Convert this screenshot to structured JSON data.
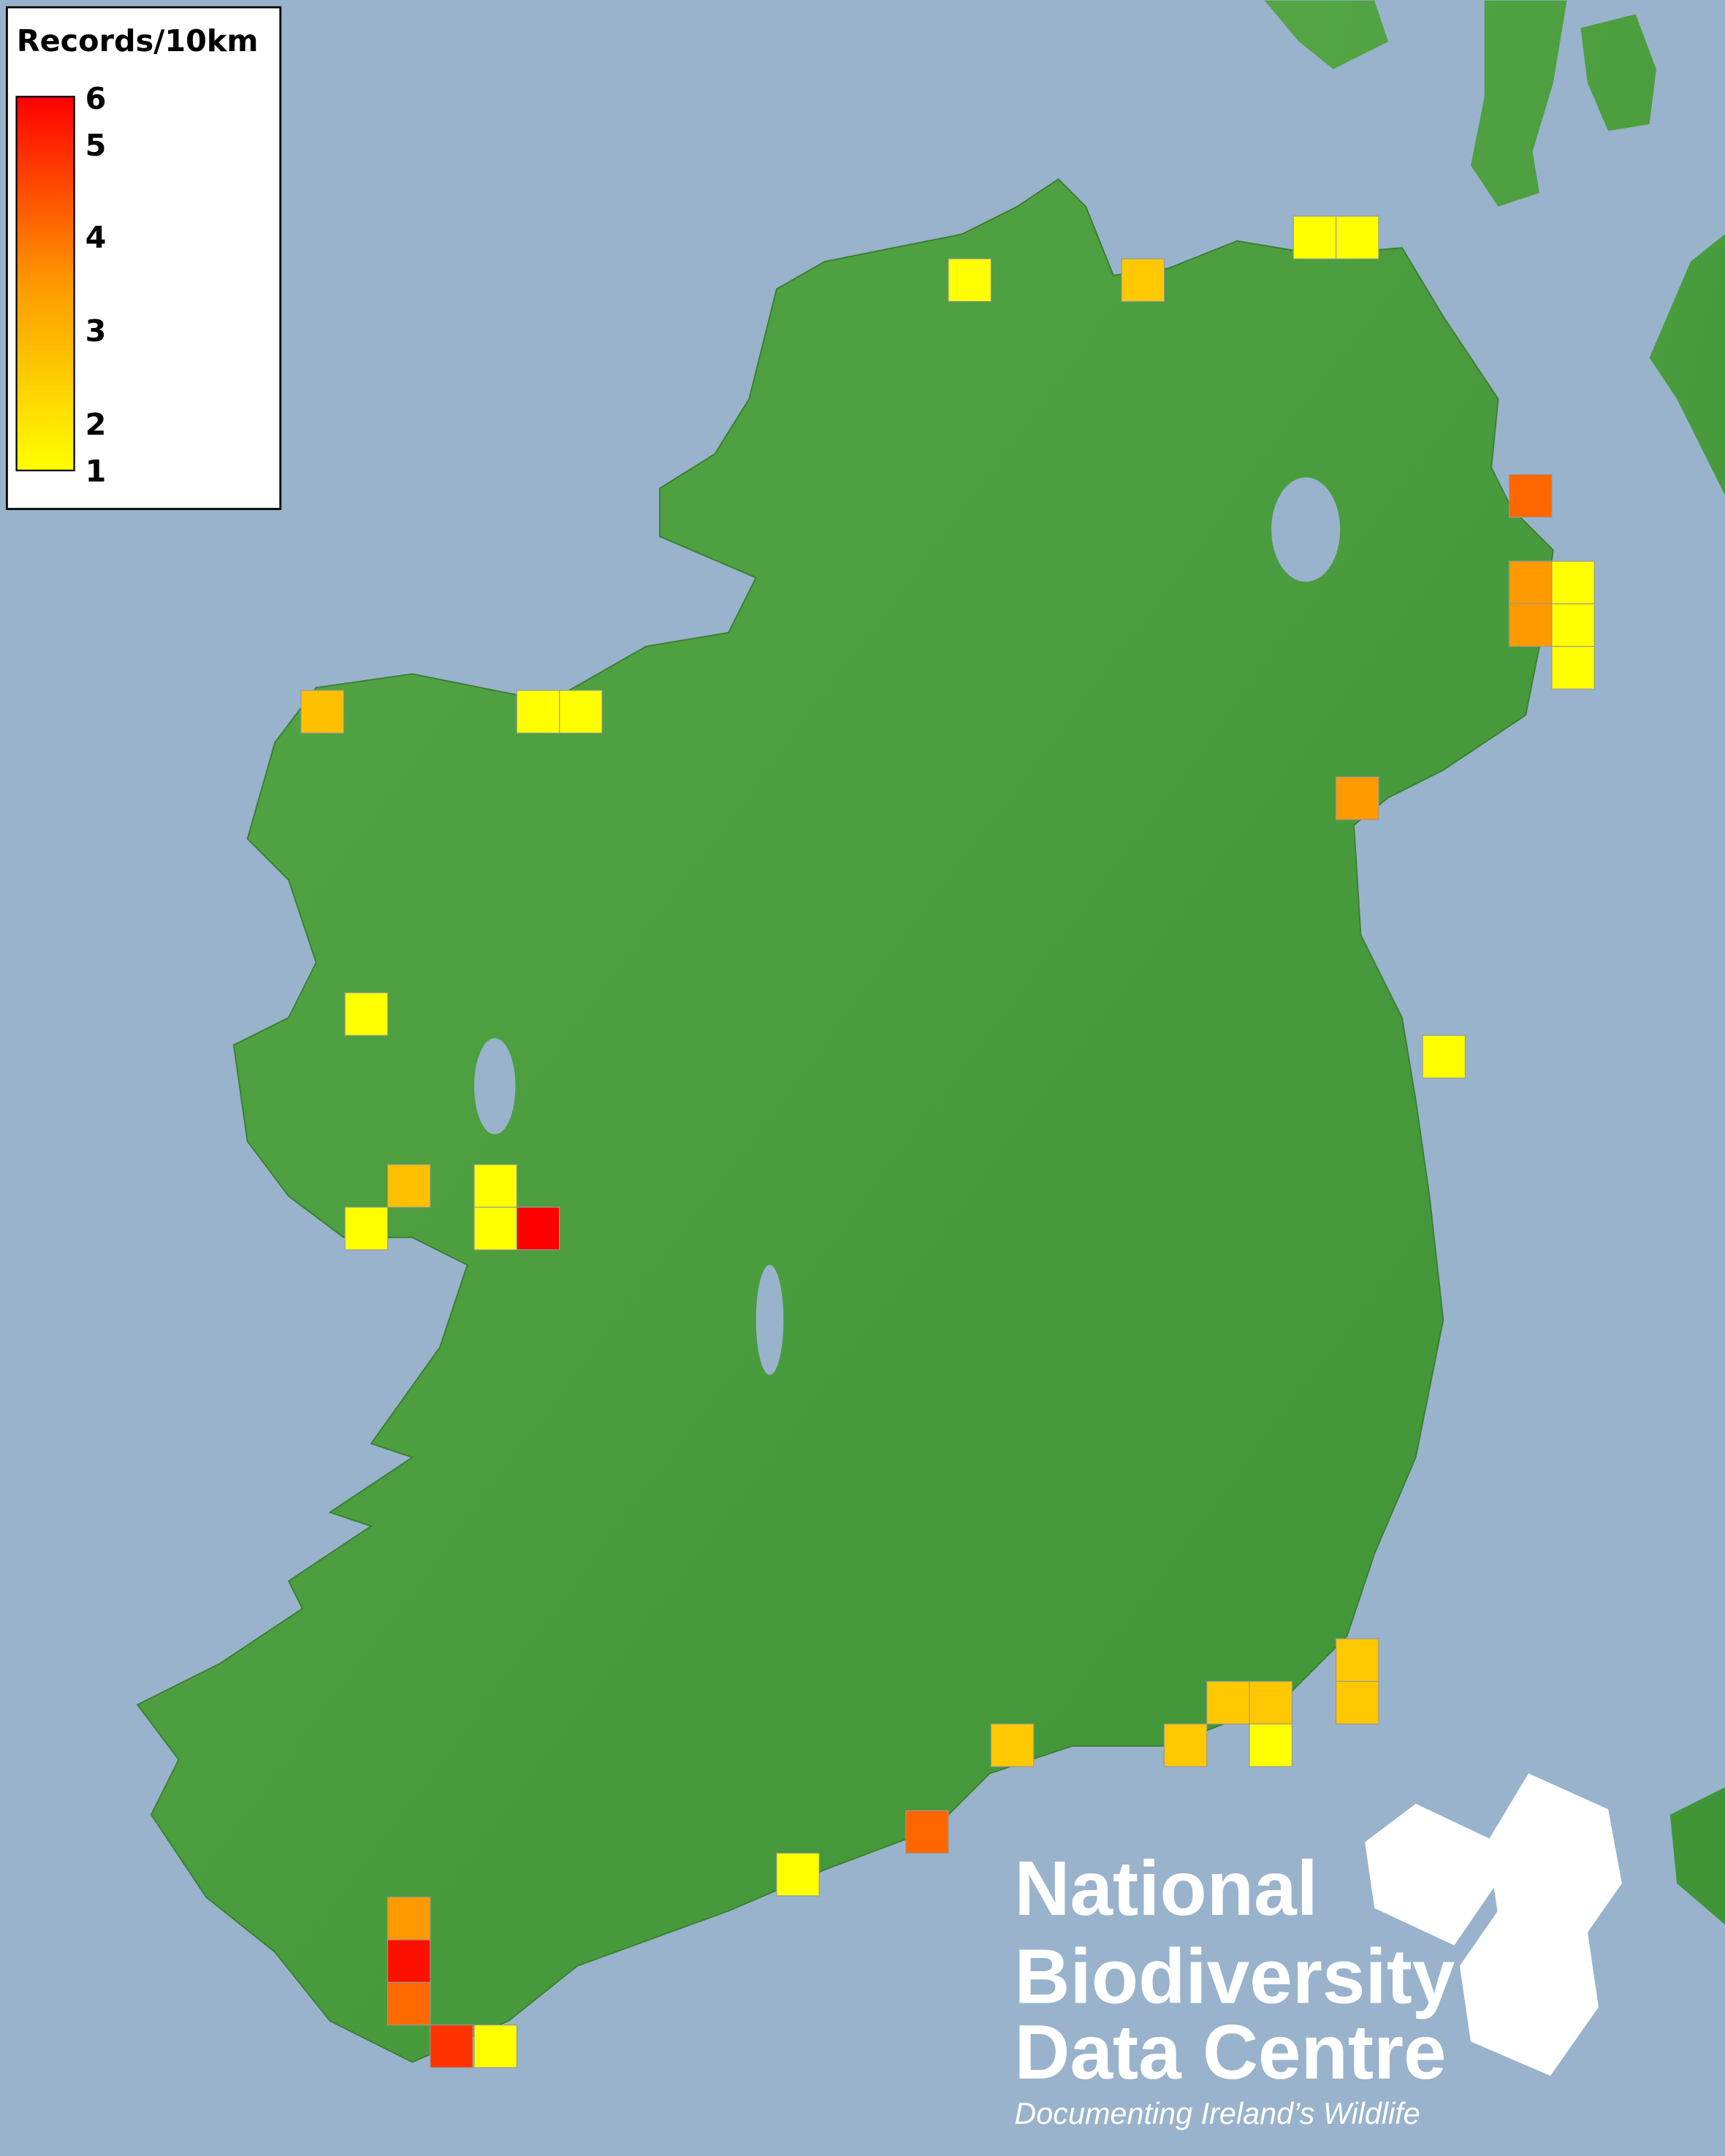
{
  "colors": {
    "sea": "#99b3cc",
    "land": "#4a9e3c",
    "low": "#ffff00",
    "high": "#ff0000"
  },
  "legend": {
    "title": "Records/10km",
    "ticks": [
      "6",
      "5",
      "4",
      "3",
      "2",
      "1"
    ],
    "range": [
      1,
      6
    ]
  },
  "logo": {
    "line1": "National",
    "line2": "Biodiversity",
    "line3": "Data Centre",
    "tagline": "Documenting Ireland’s Wildlife",
    "icons": [
      "plant-icon",
      "butterfly-icon",
      "seahorse-icon"
    ]
  },
  "records": [
    {
      "value": 1,
      "color": "#ffff00"
    },
    {
      "value": 2.5,
      "color": "#ffc800"
    },
    {
      "value": 1,
      "color": "#ffff00"
    },
    {
      "value": 1,
      "color": "#ffff00"
    },
    {
      "value": 4.2,
      "color": "#ff6600"
    },
    {
      "value": 3.3,
      "color": "#ff9900"
    },
    {
      "value": 1,
      "color": "#ffff00"
    },
    {
      "value": 3.3,
      "color": "#ff9900"
    },
    {
      "value": 1,
      "color": "#ffff00"
    },
    {
      "value": 1,
      "color": "#ffff00"
    },
    {
      "value": 2.6,
      "color": "#ffc000"
    },
    {
      "value": 1,
      "color": "#ffff00"
    },
    {
      "value": 1,
      "color": "#ffff00"
    },
    {
      "value": 3.3,
      "color": "#ff9900"
    },
    {
      "value": 1,
      "color": "#ffff00"
    },
    {
      "value": 1,
      "color": "#ffff00"
    },
    {
      "value": 2.6,
      "color": "#ffc000"
    },
    {
      "value": 1,
      "color": "#ffff00"
    },
    {
      "value": 1,
      "color": "#ffff00"
    },
    {
      "value": 1,
      "color": "#ffff00"
    },
    {
      "value": 6,
      "color": "#ff0000"
    },
    {
      "value": 2.5,
      "color": "#ffc800"
    },
    {
      "value": 2.5,
      "color": "#ffc800"
    },
    {
      "value": 2.5,
      "color": "#ffc800"
    },
    {
      "value": 2.5,
      "color": "#ffc800"
    },
    {
      "value": 2.5,
      "color": "#ffc800"
    },
    {
      "value": 2.5,
      "color": "#ffc800"
    },
    {
      "value": 1,
      "color": "#ffff00"
    },
    {
      "value": 4.2,
      "color": "#ff6600"
    },
    {
      "value": 1,
      "color": "#ffff00"
    },
    {
      "value": 3.3,
      "color": "#ff9900"
    },
    {
      "value": 5.8,
      "color": "#ff1000"
    },
    {
      "value": 4,
      "color": "#ff6a00"
    },
    {
      "value": 5,
      "color": "#ff3300"
    },
    {
      "value": 1,
      "color": "#ffff00"
    }
  ]
}
